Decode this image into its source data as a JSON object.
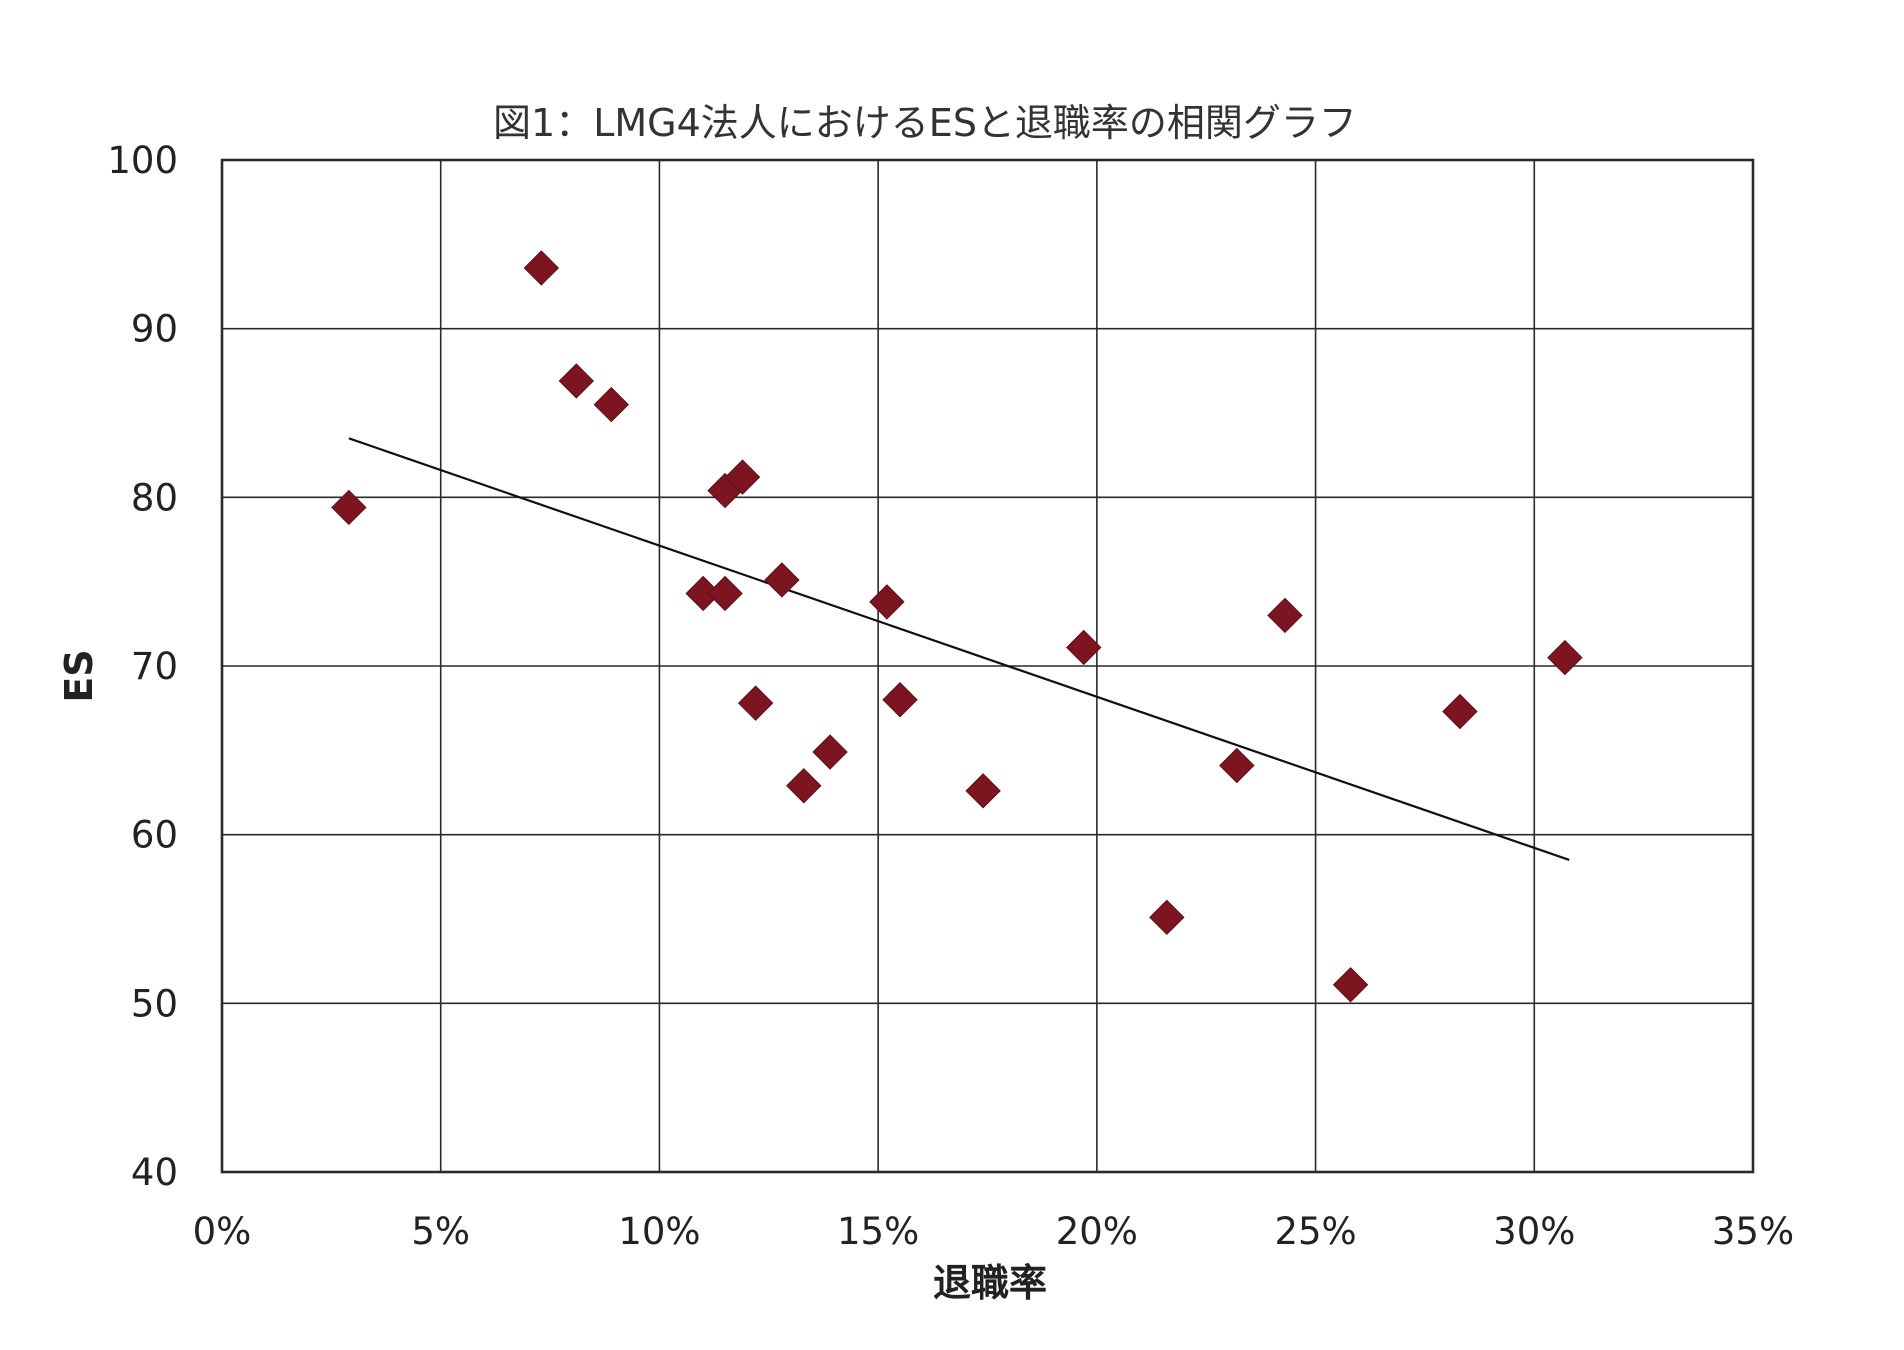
{
  "chart_data": {
    "type": "scatter",
    "title": "図1：LMG4法人におけるESと退職率の相関グラフ",
    "xlabel": "退職率",
    "ylabel": "ES",
    "xlim": [
      0,
      35
    ],
    "ylim": [
      40,
      100
    ],
    "x_ticks": [
      "0%",
      "5%",
      "10%",
      "15%",
      "20%",
      "25%",
      "30%",
      "35%"
    ],
    "y_ticks": [
      "40",
      "50",
      "60",
      "70",
      "80",
      "90",
      "100"
    ],
    "grid": true,
    "marker": "diamond",
    "marker_color": "#7d1520",
    "x_unit": "%",
    "points": [
      {
        "x": 2.9,
        "y": 79.4
      },
      {
        "x": 7.3,
        "y": 93.6
      },
      {
        "x": 8.1,
        "y": 86.9
      },
      {
        "x": 8.9,
        "y": 85.5
      },
      {
        "x": 11.0,
        "y": 74.3
      },
      {
        "x": 11.5,
        "y": 74.3
      },
      {
        "x": 11.5,
        "y": 80.4
      },
      {
        "x": 11.9,
        "y": 81.2
      },
      {
        "x": 12.2,
        "y": 67.8
      },
      {
        "x": 12.8,
        "y": 75.1
      },
      {
        "x": 13.3,
        "y": 62.9
      },
      {
        "x": 13.9,
        "y": 64.9
      },
      {
        "x": 15.2,
        "y": 73.8
      },
      {
        "x": 15.5,
        "y": 68.0
      },
      {
        "x": 17.4,
        "y": 62.6
      },
      {
        "x": 19.7,
        "y": 71.1
      },
      {
        "x": 21.6,
        "y": 55.1
      },
      {
        "x": 23.2,
        "y": 64.1
      },
      {
        "x": 24.3,
        "y": 73.0
      },
      {
        "x": 25.8,
        "y": 51.1
      },
      {
        "x": 28.3,
        "y": 67.3
      },
      {
        "x": 30.7,
        "y": 70.5
      }
    ],
    "trendline": {
      "x": [
        2.9,
        30.8
      ],
      "y": [
        83.5,
        58.5
      ]
    }
  }
}
